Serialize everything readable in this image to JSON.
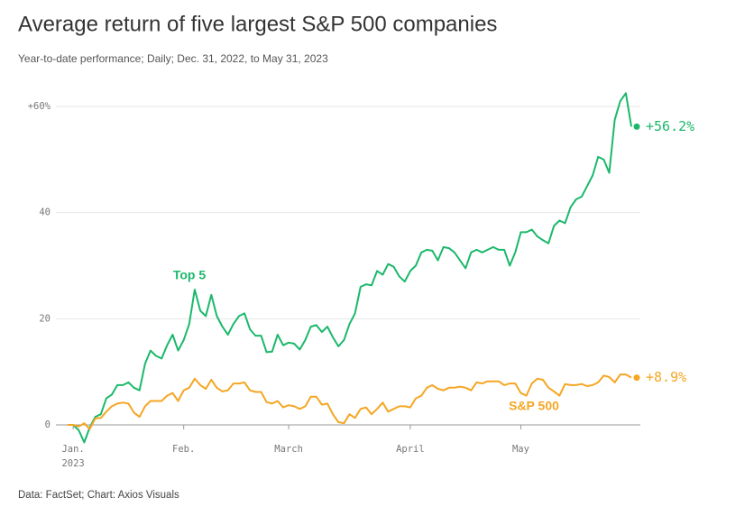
{
  "chart_data": {
    "type": "line",
    "title": "Average return of five largest S&P 500 companies",
    "subtitle": "Year-to-date performance; Daily; Dec. 31, 2022, to May 31, 2023",
    "source": "Data: FactSet; Chart: Axios Visuals",
    "year_label": "2023",
    "categories": [
      null,
      "Jan.",
      null,
      null,
      null,
      null,
      null,
      null,
      null,
      null,
      null,
      null,
      null,
      null,
      null,
      null,
      null,
      null,
      null,
      null,
      null,
      "Feb.",
      null,
      null,
      null,
      null,
      null,
      null,
      null,
      null,
      null,
      null,
      null,
      null,
      null,
      null,
      null,
      null,
      null,
      null,
      "March",
      null,
      null,
      null,
      null,
      null,
      null,
      null,
      null,
      null,
      null,
      null,
      null,
      null,
      null,
      null,
      null,
      null,
      null,
      null,
      null,
      null,
      "April",
      null,
      null,
      null,
      null,
      null,
      null,
      null,
      null,
      null,
      null,
      null,
      null,
      null,
      null,
      null,
      null,
      null,
      null,
      null,
      "May",
      null,
      null,
      null,
      null,
      null,
      null,
      null,
      null,
      null,
      null,
      null,
      null,
      null,
      null,
      null,
      null,
      null,
      null,
      null,
      null
    ],
    "series": [
      {
        "name": "Top 5",
        "color": "#1bb86b",
        "end_label": "+56.2%",
        "values": [
          0,
          0,
          -1,
          -3.3,
          -0.5,
          1.5,
          2,
          5,
          5.7,
          7.5,
          7.5,
          8,
          7,
          6.5,
          11.5,
          14,
          13,
          12.5,
          15,
          17,
          14,
          16,
          19,
          25.5,
          21.5,
          20.5,
          24.5,
          20.5,
          18.5,
          17,
          19,
          20.5,
          21,
          18,
          16.8,
          16.8,
          13.7,
          13.8,
          17,
          15,
          15.5,
          15.3,
          14.2,
          16,
          18.5,
          18.8,
          17.5,
          18.5,
          16.5,
          14.8,
          16,
          19,
          21,
          26,
          26.5,
          26.3,
          29,
          28.3,
          30.3,
          29.8,
          28,
          27,
          29,
          30,
          32.5,
          33,
          32.8,
          31,
          33.5,
          33.3,
          32.5,
          31,
          29.5,
          32.5,
          33,
          32.5,
          33,
          33.5,
          33,
          33,
          30,
          32.5,
          36.3,
          36.3,
          36.8,
          35.5,
          34.8,
          34.2,
          37.5,
          38.5,
          38,
          41,
          42.5,
          43,
          45,
          47,
          50.5,
          50,
          47.5,
          57.5,
          61,
          62.5,
          56.2
        ]
      },
      {
        "name": "S&P 500",
        "color": "#f5a623",
        "end_label": "+8.9%",
        "values": [
          0,
          0,
          -0.3,
          0.3,
          -0.8,
          1.2,
          1.3,
          2.5,
          3.5,
          4,
          4.2,
          4,
          2.3,
          1.5,
          3.5,
          4.5,
          4.5,
          4.5,
          5.5,
          6,
          4.5,
          6.5,
          7,
          8.7,
          7.5,
          6.8,
          8.5,
          7,
          6.3,
          6.5,
          7.8,
          7.8,
          8,
          6.5,
          6.2,
          6.2,
          4.3,
          4,
          4.5,
          3.3,
          3.7,
          3.5,
          3,
          3.5,
          5.3,
          5.3,
          3.8,
          4,
          2,
          0.5,
          0.3,
          2,
          1.3,
          3,
          3.3,
          2,
          3,
          4.2,
          2.5,
          3,
          3.5,
          3.5,
          3.3,
          5,
          5.5,
          7,
          7.5,
          6.8,
          6.5,
          7,
          7,
          7.2,
          7,
          6.5,
          8,
          7.8,
          8.2,
          8.2,
          8.2,
          7.5,
          7.8,
          7.8,
          6,
          5.5,
          7.8,
          8.7,
          8.5,
          7,
          6.3,
          5.5,
          7.7,
          7.5,
          7.5,
          7.7,
          7.3,
          7.5,
          8,
          9.3,
          9,
          8,
          9.5,
          9.5,
          8.9
        ]
      }
    ],
    "ylim": [
      -4,
      64
    ],
    "yticks": [
      0,
      20,
      40,
      {
        "value": 60,
        "label": "+60%"
      }
    ],
    "grid": true
  }
}
